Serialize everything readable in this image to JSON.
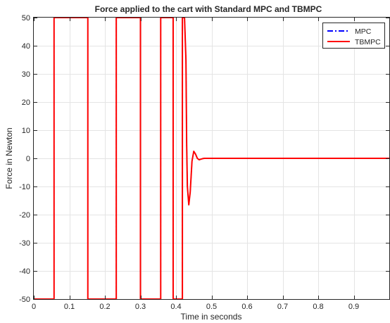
{
  "chart_data": {
    "type": "line",
    "title": "Force applied to the cart with Standard MPC and TBMPC",
    "xlabel": "Time in seconds",
    "ylabel": "Force in Newton",
    "xlim": [
      0,
      1
    ],
    "ylim": [
      -50,
      50
    ],
    "x_ticks": [
      0,
      0.1,
      0.2,
      0.3,
      0.4,
      0.5,
      0.6,
      0.7,
      0.8,
      0.9
    ],
    "x_tick_labels": [
      "0",
      "0.1",
      "0.2",
      "0.3",
      "0.4",
      "0.5",
      "0.6",
      "0.7",
      "0.8",
      "0.9"
    ],
    "y_ticks": [
      -50,
      -40,
      -30,
      -20,
      -10,
      0,
      10,
      20,
      30,
      40,
      50
    ],
    "y_tick_labels": [
      "-50",
      "-40",
      "-30",
      "-20",
      "-10",
      "0",
      "10",
      "20",
      "30",
      "40",
      "50"
    ],
    "grid": true,
    "legend_position": "top-right",
    "series": [
      {
        "name": "MPC",
        "color": "#0000ff",
        "style": "dash-dot",
        "x": [
          0,
          0.057,
          0.057,
          0.152,
          0.152,
          0.232,
          0.232,
          0.3,
          0.3,
          0.357,
          0.357,
          0.392,
          0.392,
          0.418,
          0.418,
          0.424,
          0.428,
          0.43,
          0.432,
          0.436,
          0.44,
          0.445,
          0.45,
          0.455,
          0.46,
          0.465,
          0.47,
          0.475,
          0.48,
          0.49,
          0.5,
          1.0
        ],
        "y": [
          -50,
          -50,
          50,
          50,
          -50,
          -50,
          50,
          50,
          -50,
          -50,
          50,
          50,
          -50,
          -50,
          50,
          50,
          35,
          5,
          -10,
          -16.5,
          -12,
          -1,
          2.5,
          1.5,
          0,
          -0.5,
          -0.3,
          -0.1,
          0,
          0,
          0,
          0
        ]
      },
      {
        "name": "TBMPC",
        "color": "#ff0000",
        "style": "solid",
        "x": [
          0,
          0.057,
          0.057,
          0.152,
          0.152,
          0.232,
          0.232,
          0.3,
          0.3,
          0.357,
          0.357,
          0.392,
          0.392,
          0.418,
          0.418,
          0.424,
          0.428,
          0.43,
          0.432,
          0.436,
          0.44,
          0.445,
          0.45,
          0.455,
          0.46,
          0.465,
          0.47,
          0.475,
          0.48,
          0.49,
          0.5,
          1.0
        ],
        "y": [
          -50,
          -50,
          50,
          50,
          -50,
          -50,
          50,
          50,
          -50,
          -50,
          50,
          50,
          -50,
          -50,
          50,
          50,
          35,
          5,
          -10,
          -16.5,
          -12,
          -1,
          2.5,
          1.5,
          0,
          -0.5,
          -0.3,
          -0.1,
          0,
          0,
          0,
          0
        ]
      }
    ]
  }
}
